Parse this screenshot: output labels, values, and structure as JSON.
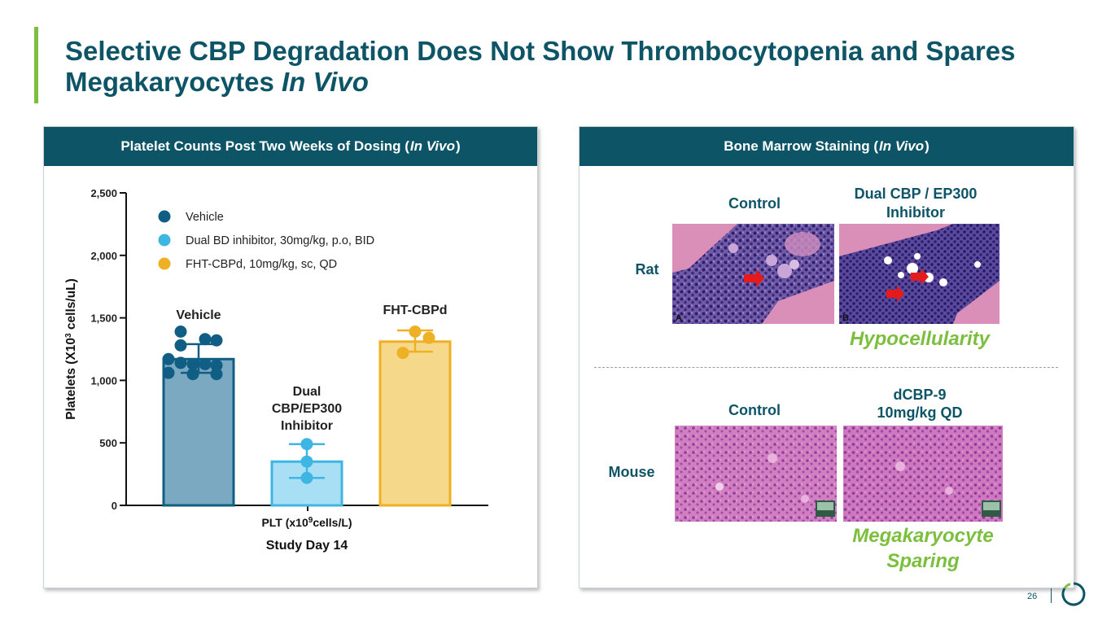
{
  "title_main": "Selective CBP Degradation Does Not Show Thrombocytopenia and Spares Megakaryocytes ",
  "title_italic": "In Vivo",
  "left_panel": {
    "header_pre": "Platelet Counts Post Two Weeks of Dosing (",
    "header_italic": "In Vivo",
    "header_post": ")"
  },
  "right_panel": {
    "header_pre": "Bone Marrow Staining (",
    "header_italic": "In Vivo",
    "header_post": ")",
    "rat_label": "Rat",
    "mouse_label": "Mouse",
    "control_label_rat": "Control",
    "dual_label": "Dual CBP / EP300 Inhibitor",
    "control_label_mouse": "Control",
    "dcbp_label_1": "dCBP-9",
    "dcbp_label_2": "10mg/kg QD",
    "image_a_label": "A",
    "image_b_label": "B",
    "hypocellularity": "Hypocellularity",
    "mega_1": "Megakaryocyte",
    "mega_2": "Sparing"
  },
  "page_number": "26",
  "colors": {
    "brand": "#0d5566",
    "green": "#7cbf3e",
    "vehicle_dark": "#115e84",
    "vehicle_fill": "#7ca9c2",
    "dual_dark": "#3eb6e3",
    "dual_fill": "#a9dff4",
    "fht_dark": "#eeb125",
    "fht_fill": "#f6d88b"
  },
  "chart_data": {
    "type": "bar",
    "ylabel_pre": "Platelets  (X10",
    "ylabel_sup": "3",
    "ylabel_post": " cells/uL)",
    "xlabel_pre": "PLT (x10",
    "xlabel_sup": "9",
    "xlabel_post": "cells/L)",
    "xlabel2": "Study Day 14",
    "ylim": [
      0,
      2500
    ],
    "yticks": [
      0,
      500,
      1000,
      1500,
      2000,
      2500
    ],
    "ytick_labels": [
      "0",
      "500",
      "1,000",
      "1,500",
      "2,000",
      "2,500"
    ],
    "legend": [
      {
        "label": "Vehicle",
        "color": "#115e84"
      },
      {
        "label": "Dual BD inhibitor, 30mg/kg, p.o, BID",
        "color": "#3eb6e3"
      },
      {
        "label": "FHT-CBPd, 10mg/kg, sc, QD",
        "color": "#eeb125"
      }
    ],
    "series": [
      {
        "name": "Vehicle",
        "label_lines": [
          "Vehicle"
        ],
        "value": 1170,
        "error": [
          1060,
          1290
        ],
        "points": [
          1390,
          1330,
          1320,
          1280,
          1170,
          1140,
          1130,
          1130,
          1120,
          1060,
          1050,
          1050
        ],
        "fill": "#7ca9c2",
        "stroke": "#115e84"
      },
      {
        "name": "Dual CBP/EP300 Inhibitor",
        "label_lines": [
          "Dual",
          "CBP/EP300",
          "Inhibitor"
        ],
        "value": 350,
        "error": [
          220,
          490
        ],
        "points": [
          490,
          350,
          220
        ],
        "fill": "#a9dff4",
        "stroke": "#3eb6e3"
      },
      {
        "name": "FHT-CBPd",
        "label_lines": [
          "FHT-CBPd"
        ],
        "value": 1310,
        "error": [
          1230,
          1400
        ],
        "points": [
          1390,
          1340,
          1220
        ],
        "fill": "#f6d88b",
        "stroke": "#eeb125"
      }
    ]
  }
}
